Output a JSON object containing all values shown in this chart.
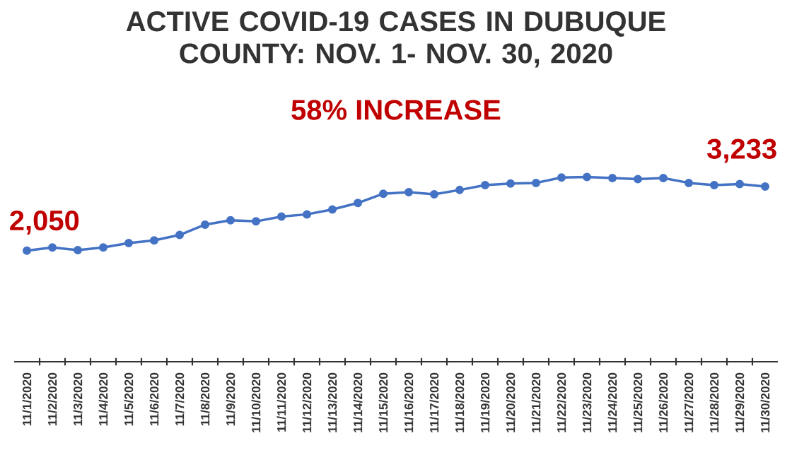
{
  "chart_data": {
    "type": "line",
    "title": "ACTIVE COVID-19 CASES IN DUBUQUE COUNTY: NOV. 1- NOV. 30, 2020",
    "subtitle": "58% INCREASE",
    "categories": [
      "11/1/2020",
      "11/2/2020",
      "11/3/2020",
      "11/4/2020",
      "11/5/2020",
      "11/6/2020",
      "11/7/2020",
      "11/8/2020",
      "11/9/2020",
      "11/10/2020",
      "11/11/2020",
      "11/12/2020",
      "11/13/2020",
      "11/14/2020",
      "11/15/2020",
      "11/16/2020",
      "11/17/2020",
      "11/18/2020",
      "11/19/2020",
      "11/20/2020",
      "11/21/2020",
      "11/22/2020",
      "11/23/2020",
      "11/24/2020",
      "11/25/2020",
      "11/26/2020",
      "11/27/2020",
      "11/28/2020",
      "11/29/2020",
      "11/30/2020"
    ],
    "values": [
      2050,
      2110,
      2060,
      2110,
      2190,
      2240,
      2340,
      2530,
      2610,
      2590,
      2680,
      2720,
      2810,
      2930,
      3100,
      3130,
      3090,
      3170,
      3260,
      3290,
      3300,
      3400,
      3410,
      3390,
      3370,
      3390,
      3300,
      3260,
      3280,
      3233
    ],
    "value_labels": [
      "2,050",
      null,
      null,
      null,
      null,
      null,
      null,
      null,
      null,
      null,
      null,
      null,
      null,
      null,
      null,
      null,
      null,
      null,
      null,
      null,
      null,
      null,
      null,
      null,
      null,
      null,
      null,
      null,
      null,
      "3,233"
    ],
    "color": "#4472c4",
    "marker": "circle",
    "tick_labels": "x"
  }
}
